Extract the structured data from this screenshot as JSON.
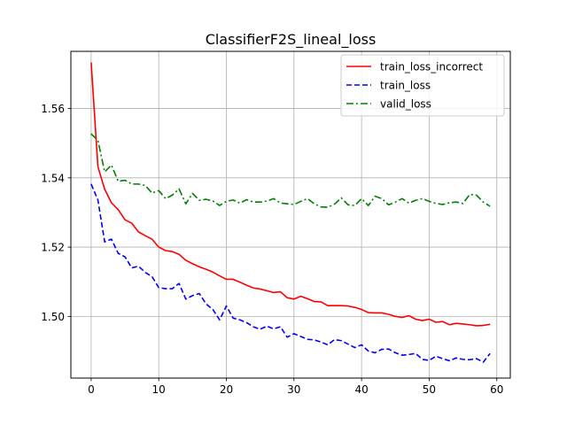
{
  "chart_data": {
    "type": "line",
    "title": "ClassifierF2S_lineal_loss",
    "xlabel": "",
    "ylabel": "",
    "xlim": [
      -3,
      62
    ],
    "ylim": [
      1.4822,
      1.5765
    ],
    "xticks": [
      0,
      10,
      20,
      30,
      40,
      50,
      60
    ],
    "yticks": [
      1.5,
      1.52,
      1.54,
      1.56
    ],
    "ytick_labels": [
      "1.50",
      "1.52",
      "1.54",
      "1.56"
    ],
    "grid": true,
    "legend_position": "top-right",
    "series": [
      {
        "name": "train_loss_incorrect",
        "color": "#ff0000",
        "style": "solid",
        "x": [
          0,
          1,
          2,
          3,
          4,
          5,
          6,
          7,
          8,
          9,
          10,
          11,
          12,
          13,
          14,
          15,
          16,
          17,
          18,
          19,
          20,
          21,
          22,
          23,
          24,
          25,
          26,
          27,
          28,
          29,
          30,
          31,
          32,
          33,
          34,
          35,
          36,
          37,
          38,
          39,
          40,
          41,
          42,
          43,
          44,
          45,
          46,
          47,
          48,
          49,
          50,
          51,
          52,
          53,
          54,
          55,
          56,
          57,
          58,
          59
        ],
        "values": [
          1.5733,
          1.5432,
          1.5367,
          1.5328,
          1.5308,
          1.5279,
          1.5269,
          1.5244,
          1.5233,
          1.5223,
          1.52,
          1.519,
          1.5187,
          1.5179,
          1.5162,
          1.5152,
          1.5143,
          1.5136,
          1.5128,
          1.5117,
          1.5107,
          1.5107,
          1.5099,
          1.509,
          1.5082,
          1.5079,
          1.5074,
          1.5069,
          1.5071,
          1.5054,
          1.505,
          1.5058,
          1.5051,
          1.5043,
          1.5042,
          1.5031,
          1.5031,
          1.5031,
          1.503,
          1.5026,
          1.502,
          1.5011,
          1.501,
          1.501,
          1.5006,
          1.5,
          1.4997,
          1.5002,
          1.4992,
          1.4988,
          1.4992,
          1.4983,
          1.4985,
          1.4976,
          1.498,
          1.4978,
          1.4976,
          1.4973,
          1.4974,
          1.4977
        ]
      },
      {
        "name": "train_loss",
        "color": "#0000ff",
        "style": "dashed",
        "x": [
          0,
          1,
          2,
          3,
          4,
          5,
          6,
          7,
          8,
          9,
          10,
          11,
          12,
          13,
          14,
          15,
          16,
          17,
          18,
          19,
          20,
          21,
          22,
          23,
          24,
          25,
          26,
          27,
          28,
          29,
          30,
          31,
          32,
          33,
          34,
          35,
          36,
          37,
          38,
          39,
          40,
          41,
          42,
          43,
          44,
          45,
          46,
          47,
          48,
          49,
          50,
          51,
          52,
          53,
          54,
          55,
          56,
          57,
          58,
          59
        ],
        "values": [
          1.5382,
          1.5336,
          1.5215,
          1.5223,
          1.5182,
          1.5172,
          1.514,
          1.5145,
          1.5127,
          1.5115,
          1.5083,
          1.508,
          1.508,
          1.5095,
          1.505,
          1.506,
          1.5066,
          1.5036,
          1.502,
          1.499,
          1.503,
          1.4995,
          1.499,
          1.4982,
          1.497,
          1.4963,
          1.4972,
          1.4964,
          1.497,
          1.494,
          1.495,
          1.4942,
          1.4934,
          1.4932,
          1.4926,
          1.4918,
          1.4933,
          1.493,
          1.492,
          1.491,
          1.4918,
          1.49,
          1.4895,
          1.4905,
          1.4906,
          1.4895,
          1.4888,
          1.489,
          1.4893,
          1.4876,
          1.4873,
          1.4885,
          1.4878,
          1.4872,
          1.488,
          1.4876,
          1.4875,
          1.4878,
          1.4868,
          1.4893
        ]
      },
      {
        "name": "valid_loss",
        "color": "#008000",
        "style": "dashdot",
        "x": [
          0,
          1,
          2,
          3,
          4,
          5,
          6,
          7,
          8,
          9,
          10,
          11,
          12,
          13,
          14,
          15,
          16,
          17,
          18,
          19,
          20,
          21,
          22,
          23,
          24,
          25,
          26,
          27,
          28,
          29,
          30,
          31,
          32,
          33,
          34,
          35,
          36,
          37,
          38,
          39,
          40,
          41,
          42,
          43,
          44,
          45,
          46,
          47,
          48,
          49,
          50,
          51,
          52,
          53,
          54,
          55,
          56,
          57,
          58,
          59
        ],
        "values": [
          1.5527,
          1.5508,
          1.5417,
          1.5437,
          1.539,
          1.5393,
          1.5382,
          1.5382,
          1.5378,
          1.5356,
          1.5363,
          1.534,
          1.535,
          1.5368,
          1.5325,
          1.5355,
          1.5335,
          1.5338,
          1.5333,
          1.532,
          1.5332,
          1.5336,
          1.5327,
          1.5337,
          1.533,
          1.533,
          1.5333,
          1.534,
          1.5327,
          1.5325,
          1.5323,
          1.5332,
          1.534,
          1.5325,
          1.5316,
          1.5315,
          1.5324,
          1.5342,
          1.5322,
          1.532,
          1.534,
          1.532,
          1.5347,
          1.534,
          1.5322,
          1.533,
          1.534,
          1.5327,
          1.5335,
          1.534,
          1.5332,
          1.5326,
          1.5323,
          1.5328,
          1.533,
          1.5326,
          1.5352,
          1.535,
          1.533,
          1.5318
        ]
      }
    ]
  }
}
